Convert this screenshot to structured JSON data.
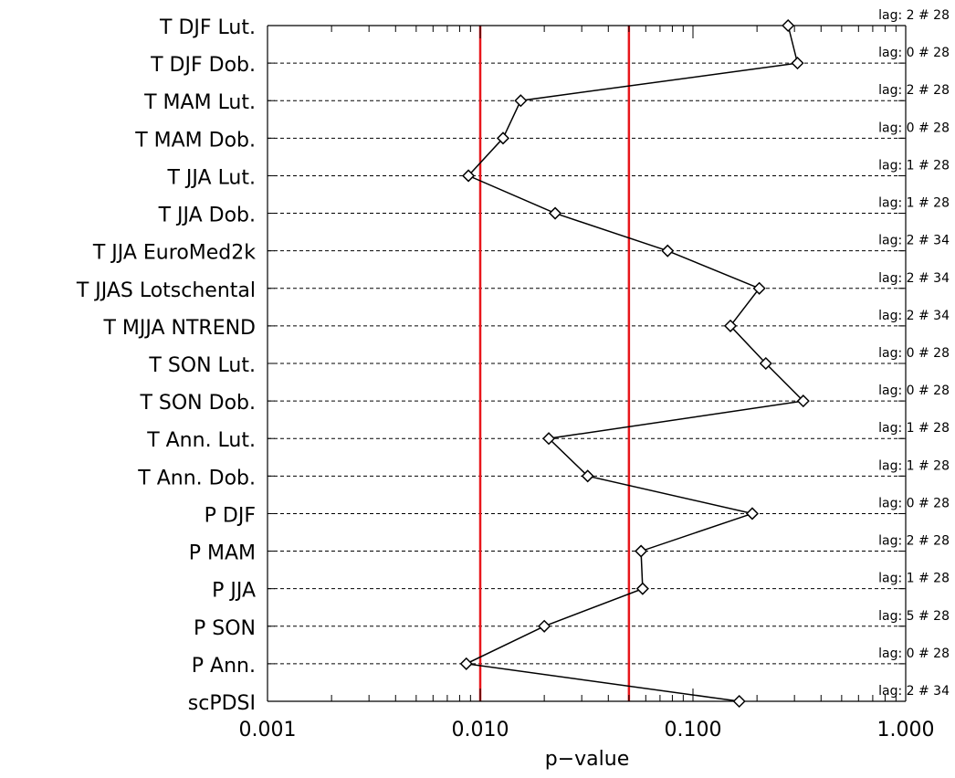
{
  "chart_data": {
    "type": "scatter",
    "title": "",
    "xlabel": "p−value",
    "ylabel": "",
    "x_scale": "log",
    "xlim": [
      0.001,
      1.0
    ],
    "x_ticks": [
      0.001,
      0.01,
      0.1,
      1.0
    ],
    "x_tick_labels": [
      "0.001",
      "0.010",
      "0.100",
      "1.000"
    ],
    "grid": "horizontal dashed",
    "thresholds": [
      {
        "value": 0.01,
        "color": "#e8161b"
      },
      {
        "value": 0.05,
        "color": "#e8161b"
      }
    ],
    "point_color": "#000000",
    "categories": [
      "T DJF Lut.",
      "T DJF Dob.",
      "T MAM Lut.",
      "T MAM Dob.",
      "T JJA Lut.",
      "T JJA Dob.",
      "T JJA EuroMed2k",
      "T JJAS Lotschental",
      "T MJJA NTREND",
      "T SON Lut.",
      "T SON Dob.",
      "T Ann. Lut.",
      "T Ann. Dob.",
      "P DJF",
      "P MAM",
      "P JJA",
      "P SON",
      "P Ann.",
      "scPDSI"
    ],
    "values": [
      0.28,
      0.31,
      0.0155,
      0.0128,
      0.0088,
      0.0225,
      0.076,
      0.205,
      0.15,
      0.22,
      0.33,
      0.021,
      0.032,
      0.19,
      0.057,
      0.058,
      0.02,
      0.0086,
      0.165
    ],
    "annotations": [
      "lag: 2 # 28",
      "lag: 0 # 28",
      "lag: 2 # 28",
      "lag: 0 # 28",
      "lag: 1 # 28",
      "lag: 1 # 28",
      "lag: 2 # 34",
      "lag: 2 # 34",
      "lag: 2 # 34",
      "lag: 0 # 28",
      "lag: 0 # 28",
      "lag: 1 # 28",
      "lag: 1 # 28",
      "lag: 0 # 28",
      "lag: 2 # 28",
      "lag: 1 # 28",
      "lag: 5 # 28",
      "lag: 0 # 28",
      "lag: 2 # 34"
    ]
  }
}
